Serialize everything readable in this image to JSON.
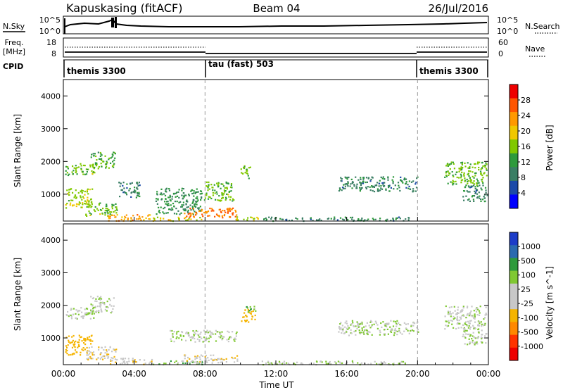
{
  "header": {
    "station": "Kapuskasing (fitACF)",
    "beam": "Beam 04",
    "date": "26/Jul/2016"
  },
  "noise_panel": {
    "left_label": "N.Sky",
    "right_label": "N.Search",
    "left_ticks": [
      "10^5",
      "10^0"
    ],
    "right_ticks": [
      "10^5",
      "10^0"
    ]
  },
  "freq_panel": {
    "left_label_line1": "Freq.",
    "left_label_line2": "[MHz]",
    "left_ticks": [
      "18",
      "8"
    ],
    "right_label": "Nave",
    "right_ticks": [
      "60",
      "0"
    ]
  },
  "cpid_panel": {
    "label": "CPID",
    "modes": [
      {
        "name": "themis 3300",
        "start_hour": 0,
        "end_hour": 8
      },
      {
        "name": "tau (fast) 503",
        "start_hour": 8,
        "end_hour": 20
      },
      {
        "name": "themis 3300",
        "start_hour": 20,
        "end_hour": 24
      }
    ]
  },
  "x_axis": {
    "label": "Time UT",
    "ticks": [
      {
        "hour": 0,
        "label": "00:00"
      },
      {
        "hour": 4,
        "label": "04:00"
      },
      {
        "hour": 8,
        "label": "08:00"
      },
      {
        "hour": 12,
        "label": "12:00"
      },
      {
        "hour": 16,
        "label": "16:00"
      },
      {
        "hour": 20,
        "label": "20:00"
      },
      {
        "hour": 24,
        "label": "00:00"
      }
    ]
  },
  "power_panel": {
    "ylabel": "Slant Range [km]",
    "colorbar_label": "Power [dB]",
    "colorbar_ticks": [
      "28",
      "24",
      "20",
      "16",
      "12",
      "8",
      "4"
    ],
    "colorbar_colors": [
      "#ee0000",
      "#ff5500",
      "#ff9900",
      "#f0c800",
      "#80c800",
      "#2e9a3c",
      "#3a7e64",
      "#1c4aa8",
      "#0000ff"
    ]
  },
  "velocity_panel": {
    "ylabel": "Slant Range [km]",
    "colorbar_label": "Velocity [m s^-1]",
    "colorbar_ticks": [
      "1000",
      "500",
      "100",
      "25",
      "-25",
      "-100",
      "-500",
      "-1000"
    ],
    "colorbar_colors": [
      "#1c3cc8",
      "#2a6ab0",
      "#2e9a3c",
      "#80c832",
      "#c8c8c8",
      "#c8c8c8",
      "#f5b400",
      "#ff8800",
      "#ff3300",
      "#ee0000"
    ]
  },
  "chart_data": {
    "type": "heatmap",
    "x_range_hours": [
      0,
      24
    ],
    "y_range_km": [
      180,
      4500
    ],
    "y_ticks_km": [
      1000,
      2000,
      3000,
      4000
    ],
    "boundary_lines_hours": [
      8,
      20
    ],
    "power_regions": [
      {
        "t0": 0.1,
        "t1": 1.8,
        "r0": 1600,
        "r1": 1950,
        "level": 14
      },
      {
        "t0": 1.5,
        "t1": 2.9,
        "r0": 1800,
        "r1": 2300,
        "level": 12
      },
      {
        "t0": 0.1,
        "t1": 1.6,
        "r0": 600,
        "r1": 1200,
        "level": 16
      },
      {
        "t0": 1.2,
        "t1": 3.0,
        "r0": 350,
        "r1": 750,
        "level": 14
      },
      {
        "t0": 2.5,
        "t1": 5.0,
        "r0": 200,
        "r1": 400,
        "level": 22
      },
      {
        "t0": 3.1,
        "t1": 4.3,
        "r0": 900,
        "r1": 1400,
        "level": 8
      },
      {
        "t0": 5.0,
        "t1": 7.8,
        "r0": 200,
        "r1": 320,
        "level": 18
      },
      {
        "t0": 5.2,
        "t1": 7.8,
        "r0": 400,
        "r1": 1200,
        "level": 10
      },
      {
        "t0": 6.8,
        "t1": 9.8,
        "r0": 300,
        "r1": 600,
        "level": 24
      },
      {
        "t0": 7.9,
        "t1": 9.6,
        "r0": 800,
        "r1": 1400,
        "level": 14
      },
      {
        "t0": 9.5,
        "t1": 11.0,
        "r0": 200,
        "r1": 330,
        "level": 16
      },
      {
        "t0": 10.0,
        "t1": 10.6,
        "r0": 1500,
        "r1": 1900,
        "level": 14
      },
      {
        "t0": 11.0,
        "t1": 19.5,
        "r0": 200,
        "r1": 320,
        "level": 8
      },
      {
        "t0": 15.5,
        "t1": 20.0,
        "r0": 1100,
        "r1": 1550,
        "level": 8
      },
      {
        "t0": 21.5,
        "t1": 23.9,
        "r0": 1300,
        "r1": 2000,
        "level": 14
      },
      {
        "t0": 22.5,
        "t1": 23.9,
        "r0": 800,
        "r1": 1300,
        "level": 8
      }
    ],
    "velocity_regions": [
      {
        "t0": 0.1,
        "t1": 1.8,
        "r0": 1600,
        "r1": 1950,
        "v": 0
      },
      {
        "t0": 1.5,
        "t1": 2.9,
        "r0": 1800,
        "r1": 2300,
        "v": 0
      },
      {
        "t0": 0.1,
        "t1": 1.6,
        "r0": 500,
        "r1": 1100,
        "v": -300
      },
      {
        "t0": 1.2,
        "t1": 3.0,
        "r0": 350,
        "r1": 750,
        "v": -80
      },
      {
        "t0": 2.5,
        "t1": 5.0,
        "r0": 200,
        "r1": 400,
        "v": -60
      },
      {
        "t0": 5.0,
        "t1": 7.8,
        "r0": 200,
        "r1": 320,
        "v": 80
      },
      {
        "t0": 6.0,
        "t1": 9.8,
        "r0": 900,
        "r1": 1250,
        "v": 0
      },
      {
        "t0": 6.8,
        "t1": 9.8,
        "r0": 250,
        "r1": 500,
        "v": -60
      },
      {
        "t0": 10.0,
        "t1": 10.8,
        "r0": 1500,
        "r1": 1900,
        "v": -300
      },
      {
        "t0": 10.2,
        "t1": 10.9,
        "r0": 1800,
        "r1": 2000,
        "v": 80
      },
      {
        "t0": 11.0,
        "t1": 19.5,
        "r0": 200,
        "r1": 320,
        "v": 0
      },
      {
        "t0": 15.5,
        "t1": 20.0,
        "r0": 1100,
        "r1": 1550,
        "v": 0
      },
      {
        "t0": 21.5,
        "t1": 23.9,
        "r0": 1300,
        "r1": 2000,
        "v": 0
      },
      {
        "t0": 22.5,
        "t1": 23.9,
        "r0": 800,
        "r1": 1300,
        "v": 0
      }
    ]
  }
}
